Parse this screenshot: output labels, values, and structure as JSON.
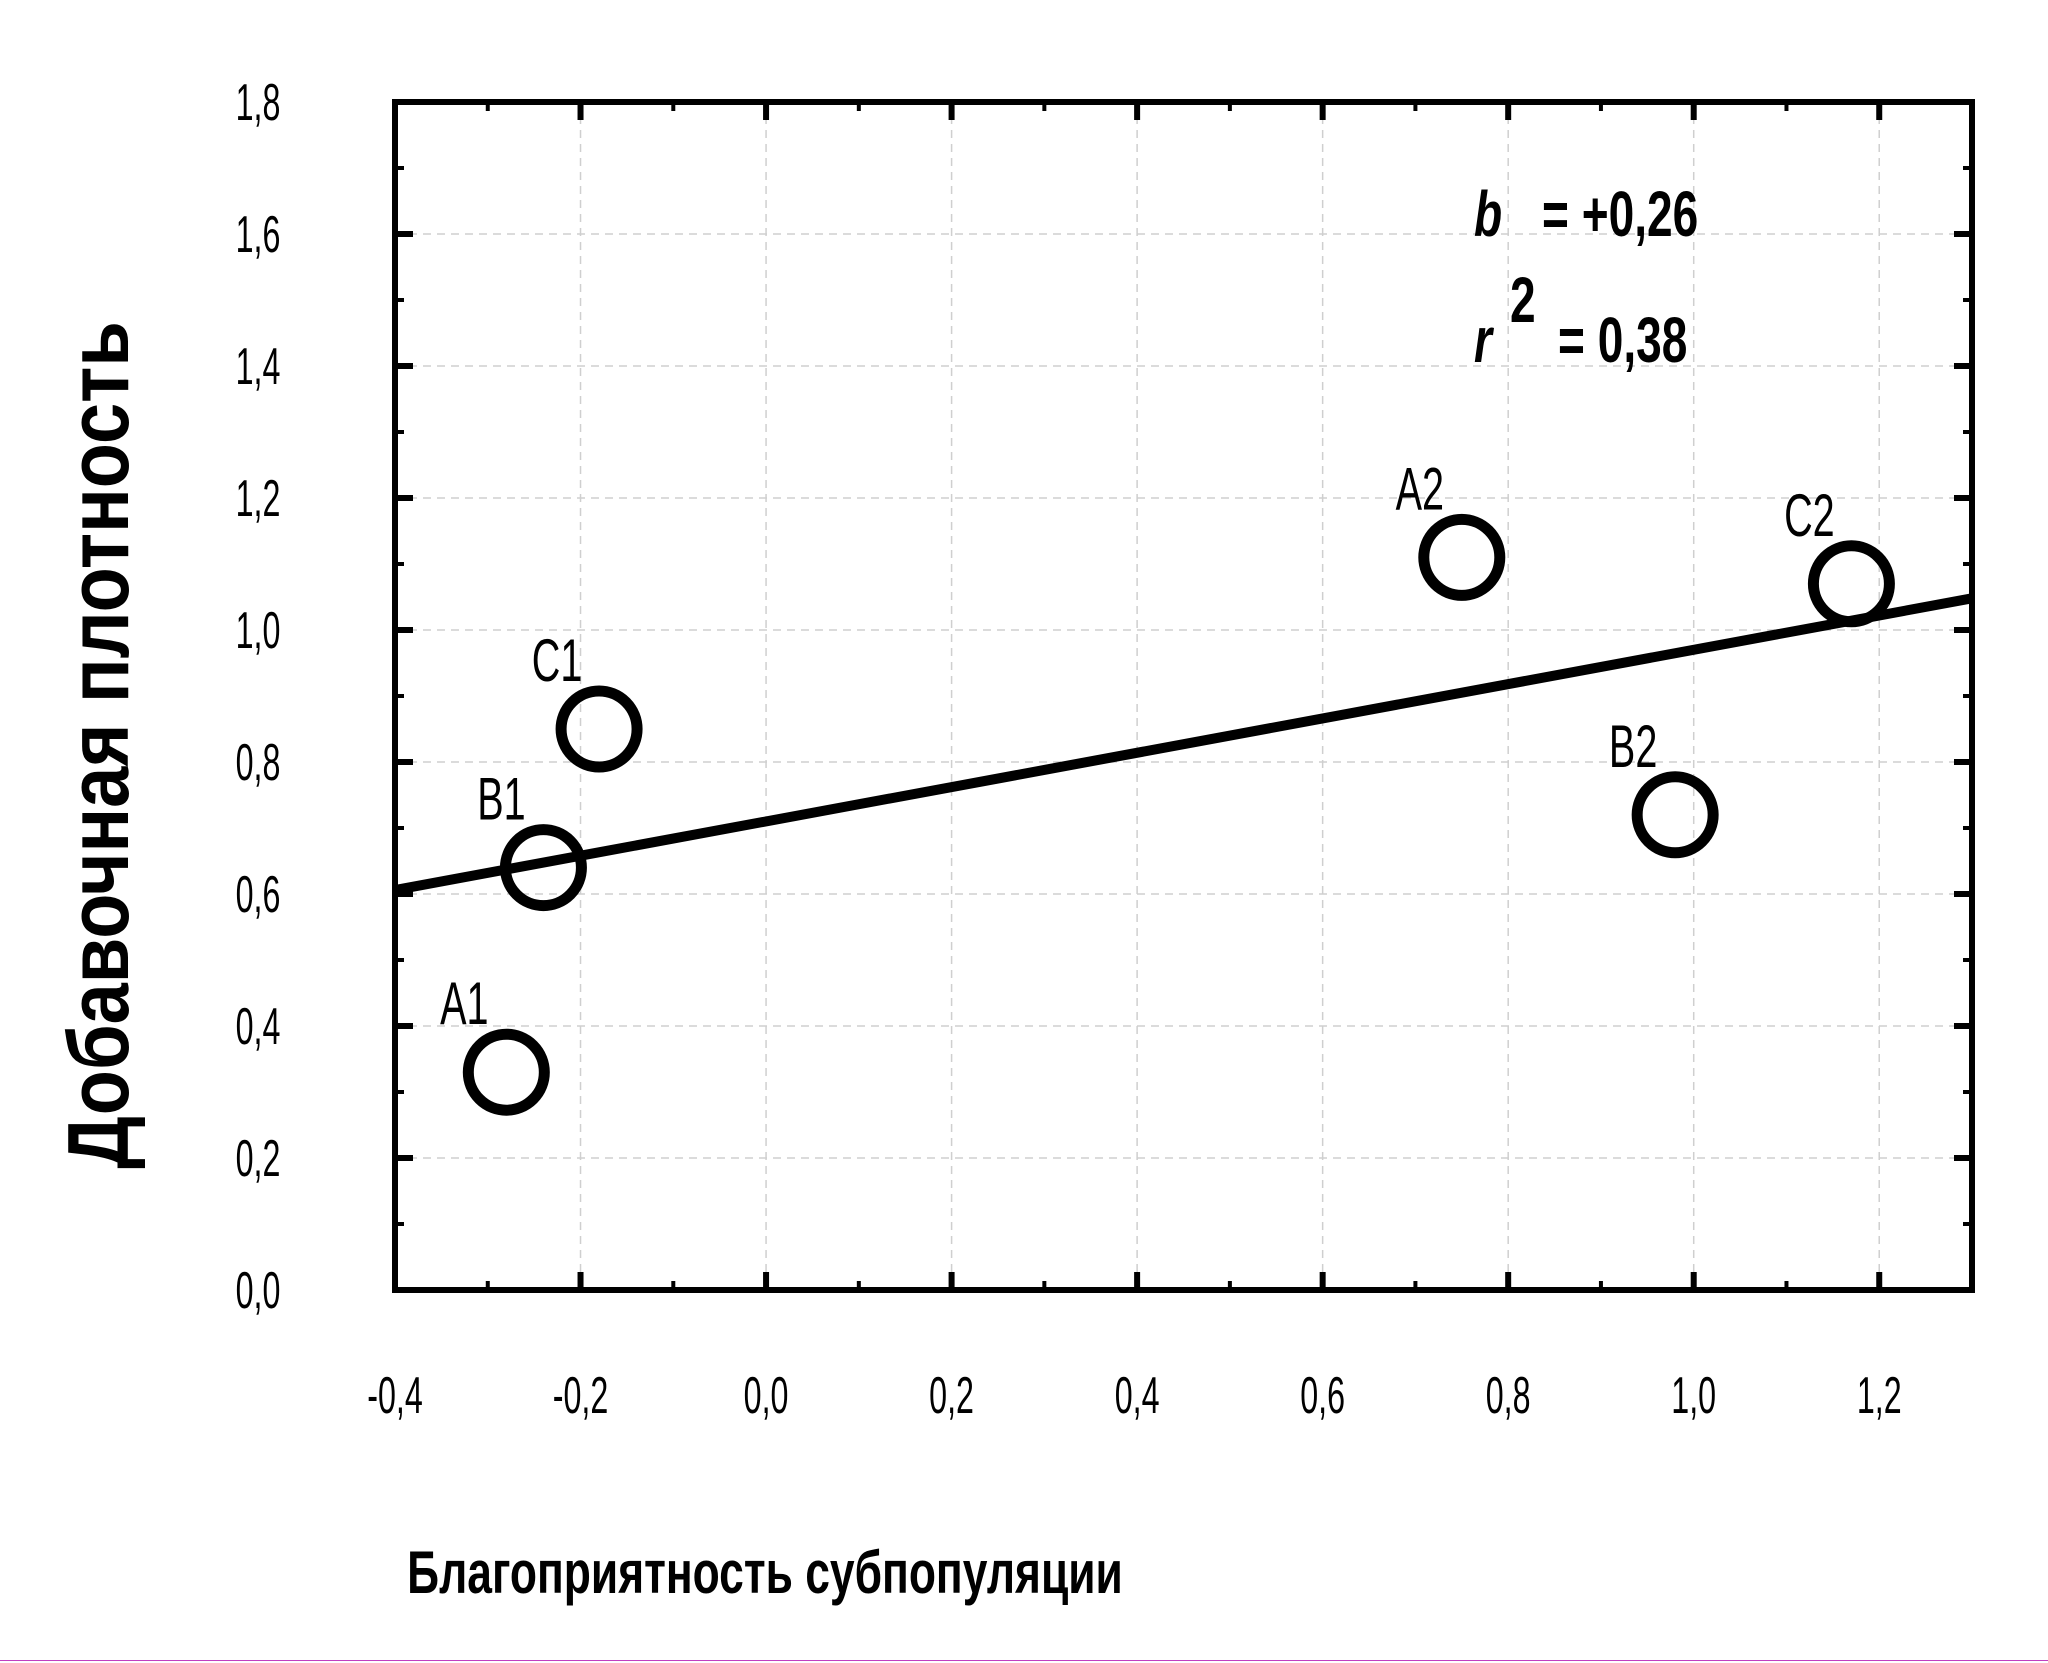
{
  "chart_data": {
    "type": "scatter",
    "xlabel": "Благоприятность субпопуляции",
    "ylabel": "Добавочная плотность",
    "xlim": [
      -0.4,
      1.3
    ],
    "ylim": [
      0.0,
      1.8
    ],
    "x_ticks": [
      -0.4,
      -0.2,
      0.0,
      0.2,
      0.4,
      0.6,
      0.8,
      1.0,
      1.2
    ],
    "x_tick_labels": [
      "-0,4",
      "-0,2",
      "0,0",
      "0,2",
      "0,4",
      "0,6",
      "0,8",
      "1,0",
      "1,2"
    ],
    "y_ticks": [
      0.0,
      0.2,
      0.4,
      0.6,
      0.8,
      1.0,
      1.2,
      1.4,
      1.6,
      1.8
    ],
    "y_tick_labels": [
      "0,0",
      "0,2",
      "0,4",
      "0,6",
      "0,8",
      "1,0",
      "1,2",
      "1,4",
      "1,6",
      "1,8"
    ],
    "grid": true,
    "points": [
      {
        "label": "A1",
        "x": -0.28,
        "y": 0.33
      },
      {
        "label": "B1",
        "x": -0.24,
        "y": 0.64
      },
      {
        "label": "C1",
        "x": -0.18,
        "y": 0.85
      },
      {
        "label": "A2",
        "x": 0.75,
        "y": 1.11
      },
      {
        "label": "B2",
        "x": 0.98,
        "y": 0.72
      },
      {
        "label": "C2",
        "x": 1.17,
        "y": 1.07
      }
    ],
    "regression": {
      "slope": 0.26,
      "intercept": 0.71
    },
    "annotations": {
      "b_symbol": "b",
      "b_value": "= +0,26",
      "r_symbol": "r",
      "r_sup": "2",
      "r_value": "= 0,38"
    }
  }
}
